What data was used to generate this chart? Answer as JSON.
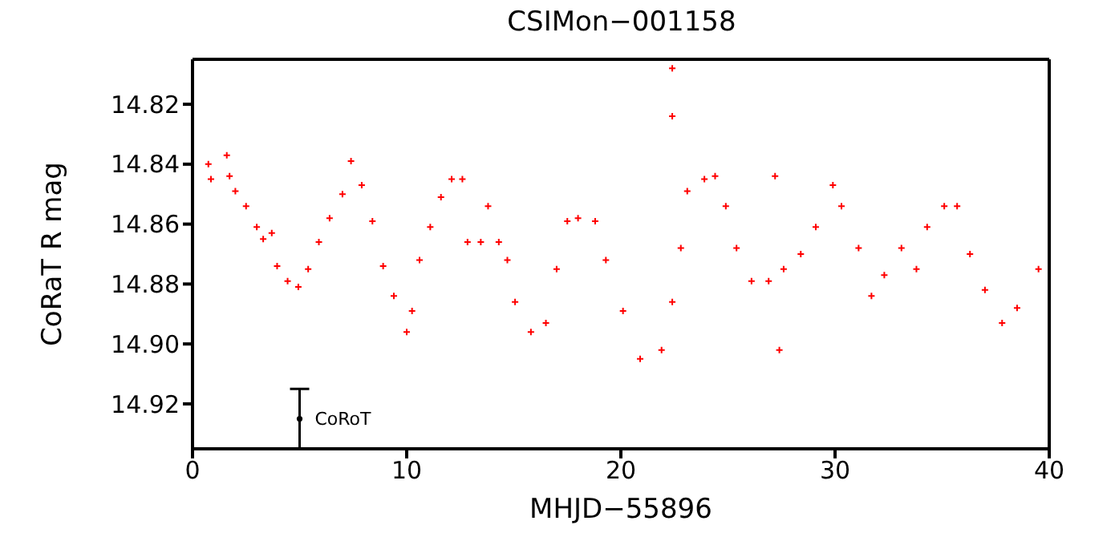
{
  "chart_data": {
    "type": "scatter",
    "title": "CSIMon−001158",
    "xlabel": "MHJD−55896",
    "ylabel": "CoRaT R mag",
    "marker": "cross",
    "xlim": [
      0,
      40
    ],
    "xticks": [
      0,
      10,
      20,
      30,
      40
    ],
    "ylim": [
      14.935,
      14.805
    ],
    "yticks": [
      14.82,
      14.84,
      14.86,
      14.88,
      {
        "value": 14.9,
        "label": "14.90"
      },
      14.92
    ],
    "series": [
      {
        "color": "#ff0000",
        "x": [
          0.74,
          0.86,
          1.6,
          1.73,
          2.0,
          2.5,
          3.0,
          3.3,
          3.7,
          3.95,
          4.44,
          4.94,
          5.4,
          5.9,
          6.4,
          7.0,
          7.4,
          7.9,
          8.4,
          8.9,
          9.4,
          10.0,
          10.25,
          10.6,
          11.1,
          11.6,
          12.1,
          12.6,
          12.84,
          13.46,
          13.8,
          14.3,
          14.7,
          15.06,
          15.8,
          16.5,
          17.0,
          17.5,
          18.0,
          18.8,
          19.3,
          20.1,
          20.9,
          21.9,
          22.4,
          22.8,
          23.1,
          23.9,
          24.4,
          24.9,
          25.4,
          26.1,
          26.9,
          27.6,
          28.4,
          29.1,
          29.9,
          30.3,
          31.1,
          31.7,
          32.3,
          33.1,
          33.8,
          34.3,
          35.1,
          35.7,
          36.3,
          37.0,
          37.8,
          38.5,
          39.5,
          22.4,
          22.4,
          27.4,
          27.2
        ],
        "values": [
          14.84,
          14.845,
          14.837,
          14.844,
          14.849,
          14.854,
          14.861,
          14.865,
          14.863,
          14.874,
          14.879,
          14.881,
          14.875,
          14.866,
          14.858,
          14.85,
          14.839,
          14.847,
          14.859,
          14.874,
          14.884,
          14.896,
          14.889,
          14.872,
          14.861,
          14.851,
          14.845,
          14.845,
          14.866,
          14.866,
          14.854,
          14.866,
          14.872,
          14.886,
          14.896,
          14.893,
          14.875,
          14.859,
          14.858,
          14.859,
          14.872,
          14.889,
          14.905,
          14.902,
          14.886,
          14.868,
          14.849,
          14.845,
          14.844,
          14.854,
          14.868,
          14.879,
          14.879,
          14.875,
          14.87,
          14.861,
          14.847,
          14.854,
          14.868,
          14.884,
          14.877,
          14.868,
          14.875,
          14.861,
          14.854,
          14.854,
          14.87,
          14.882,
          14.893,
          14.888,
          14.875,
          14.808,
          14.824,
          14.902,
          14.844
        ]
      },
      {
        "name": "CoRoT",
        "color": "#000000",
        "marker": "circle",
        "x": [
          5
        ],
        "values": [
          14.925
        ],
        "errors": [
          0.01
        ]
      }
    ]
  }
}
